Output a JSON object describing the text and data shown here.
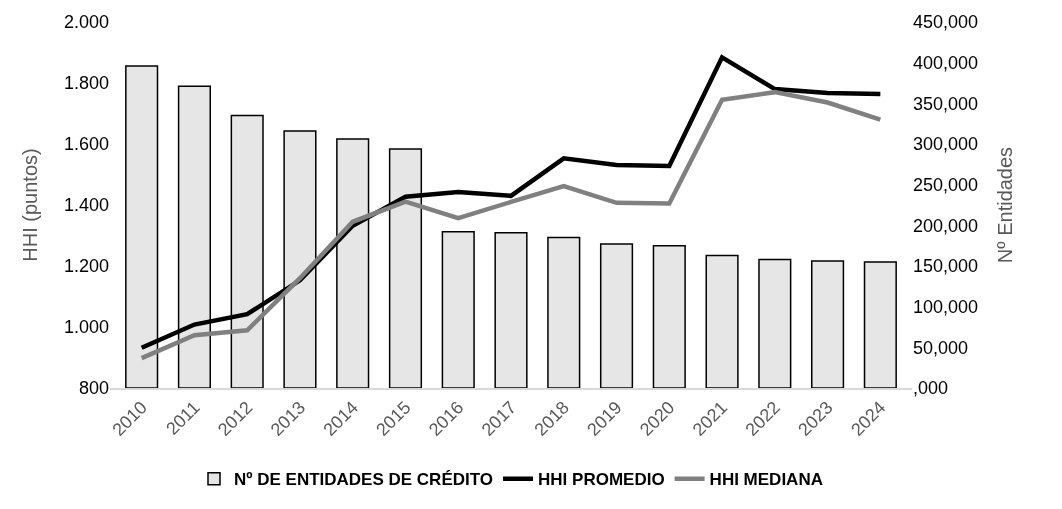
{
  "chart_data": {
    "type": "bar",
    "categories": [
      "2010",
      "2011",
      "2012",
      "2013",
      "2014",
      "2015",
      "2016",
      "2017",
      "2018",
      "2019",
      "2020",
      "2021",
      "2022",
      "2023",
      "2024"
    ],
    "ylabel": "HHI (puntos)",
    "y2label": "Nº Entidades",
    "series": [
      {
        "name": "Nº DE ENTIDADES DE CRÉDITO",
        "axis": "y2",
        "color": "#e7e6e6",
        "values": [
          396,
          371,
          335,
          316,
          306,
          294,
          192,
          191,
          185,
          177,
          175,
          163,
          158,
          156,
          155
        ]
      },
      {
        "name": "HHI PROMEDIO",
        "type": "line",
        "color": "#000000",
        "values": [
          932,
          1008,
          1042,
          1153,
          1332,
          1427,
          1443,
          1430,
          1553,
          1531,
          1528,
          1884,
          1780,
          1767,
          1764
        ]
      },
      {
        "name": "HHI MEDIANA",
        "type": "line",
        "color": "#808080",
        "values": [
          898,
          973,
          989,
          1160,
          1345,
          1411,
          1357,
          1410,
          1462,
          1407,
          1405,
          1745,
          1770,
          1736,
          1680
        ]
      }
    ],
    "ylim": [
      800,
      2000
    ],
    "yticks": [
      {
        "value": 800,
        "label": "800"
      },
      {
        "value": 1000,
        "label": "1.000"
      },
      {
        "value": 1200,
        "label": "1.200"
      },
      {
        "value": 1400,
        "label": "1.400"
      },
      {
        "value": 1600,
        "label": "1.600"
      },
      {
        "value": 1800,
        "label": "1.800"
      },
      {
        "value": 2000,
        "label": "2.000"
      }
    ],
    "y2lim": [
      0,
      450
    ],
    "y2ticks": [
      {
        "value": 0,
        "label": ",000"
      },
      {
        "value": 50,
        "label": "50,000"
      },
      {
        "value": 100,
        "label": "100,000"
      },
      {
        "value": 150,
        "label": "150,000"
      },
      {
        "value": 200,
        "label": "200,000"
      },
      {
        "value": 250,
        "label": "250,000"
      },
      {
        "value": 300,
        "label": "300,000"
      },
      {
        "value": 350,
        "label": "350,000"
      },
      {
        "value": 400,
        "label": "400,000"
      },
      {
        "value": 450,
        "label": "450,000"
      }
    ],
    "grid": false,
    "legend": "bottom",
    "line_style": "solid",
    "marker": "none"
  }
}
